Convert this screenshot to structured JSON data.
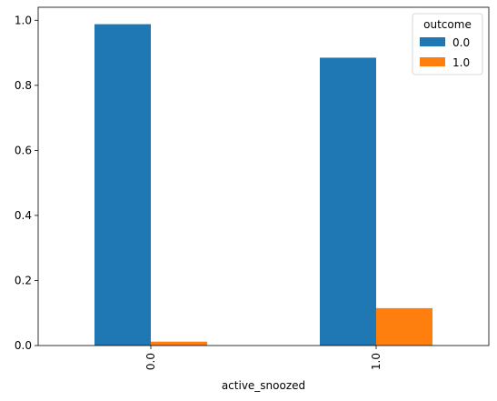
{
  "chart_data": {
    "type": "bar",
    "categories": [
      "0.0",
      "1.0"
    ],
    "series": [
      {
        "name": "0.0",
        "values": [
          0.988,
          0.885
        ],
        "color": "#1f77b4"
      },
      {
        "name": "1.0",
        "values": [
          0.012,
          0.115
        ],
        "color": "#ff7f0e"
      }
    ],
    "xlabel": "active_snoozed",
    "ylabel": "",
    "ylim": [
      0,
      1.04
    ],
    "yticks": [
      0.0,
      0.2,
      0.4,
      0.6,
      0.8,
      1.0
    ],
    "ytick_labels": [
      "0.0",
      "0.2",
      "0.4",
      "0.6",
      "0.8",
      "1.0"
    ],
    "grid": false,
    "legend": {
      "title": "outcome",
      "placement": "top-right"
    }
  }
}
